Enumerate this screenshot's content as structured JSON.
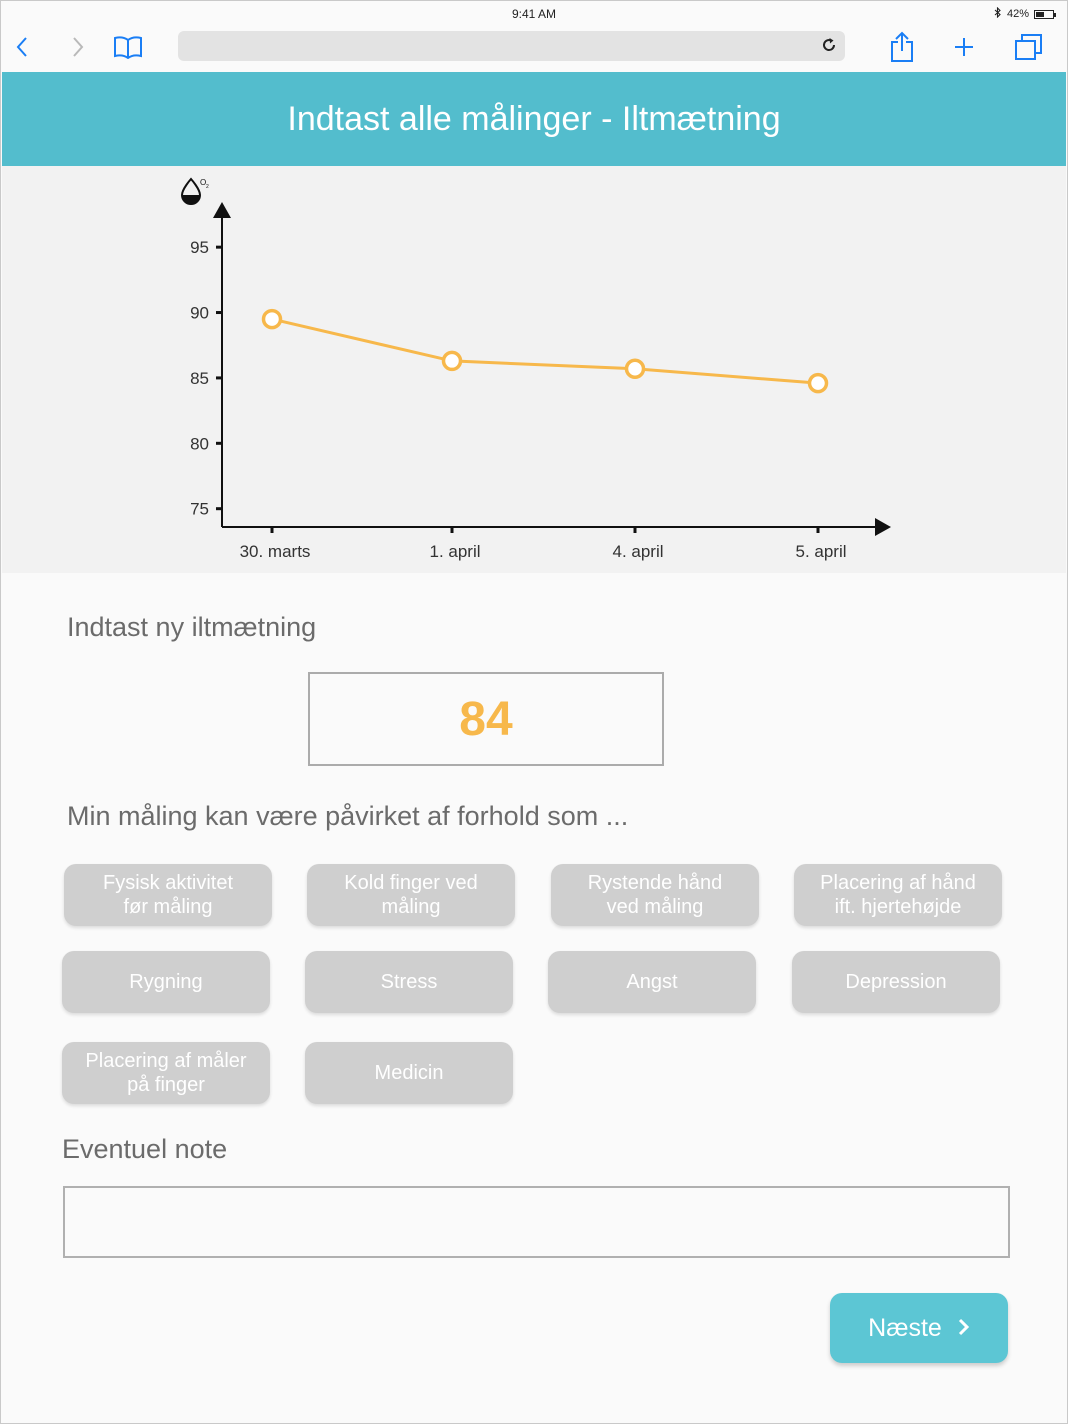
{
  "status": {
    "time": "9:41 AM",
    "battery": "42%"
  },
  "header": {
    "title": "Indtast alle målinger - Iltmætning"
  },
  "chart_data": {
    "type": "line",
    "categories": [
      "30. marts",
      "1. april",
      "4. april",
      "5. april"
    ],
    "series": [
      {
        "values": [
          89.5,
          86.3,
          85.7,
          84.6
        ],
        "color": "#f7b84b"
      }
    ],
    "yticks": [
      75,
      80,
      85,
      90,
      95
    ],
    "ylim": [
      73.6,
      97
    ],
    "xlabel": "",
    "ylabel": "",
    "grid": false,
    "ylabel_icon": "oxygen-drop-icon"
  },
  "entry": {
    "heading": "Indtast ny iltmætning",
    "value": "84"
  },
  "factors": {
    "heading": "Min måling kan være påvirket af forhold som ...",
    "options": [
      "Fysisk aktivitet\nfør måling",
      "Kold finger ved\nmåling",
      "Rystende hånd\nved måling",
      "Placering af hånd\nift. hjertehøjde",
      "Rygning",
      "Stress",
      "Angst",
      "Depression",
      "Placering af måler\npå finger",
      "Medicin"
    ]
  },
  "note": {
    "heading": "Eventuel note",
    "value": ""
  },
  "next": {
    "label": "Næste"
  },
  "colors": {
    "header": "#53bdcd",
    "accent": "#f7b84b",
    "chip": "#cfcfcf",
    "button": "#5cc6d4",
    "ios_blue": "#1a7ef5"
  }
}
